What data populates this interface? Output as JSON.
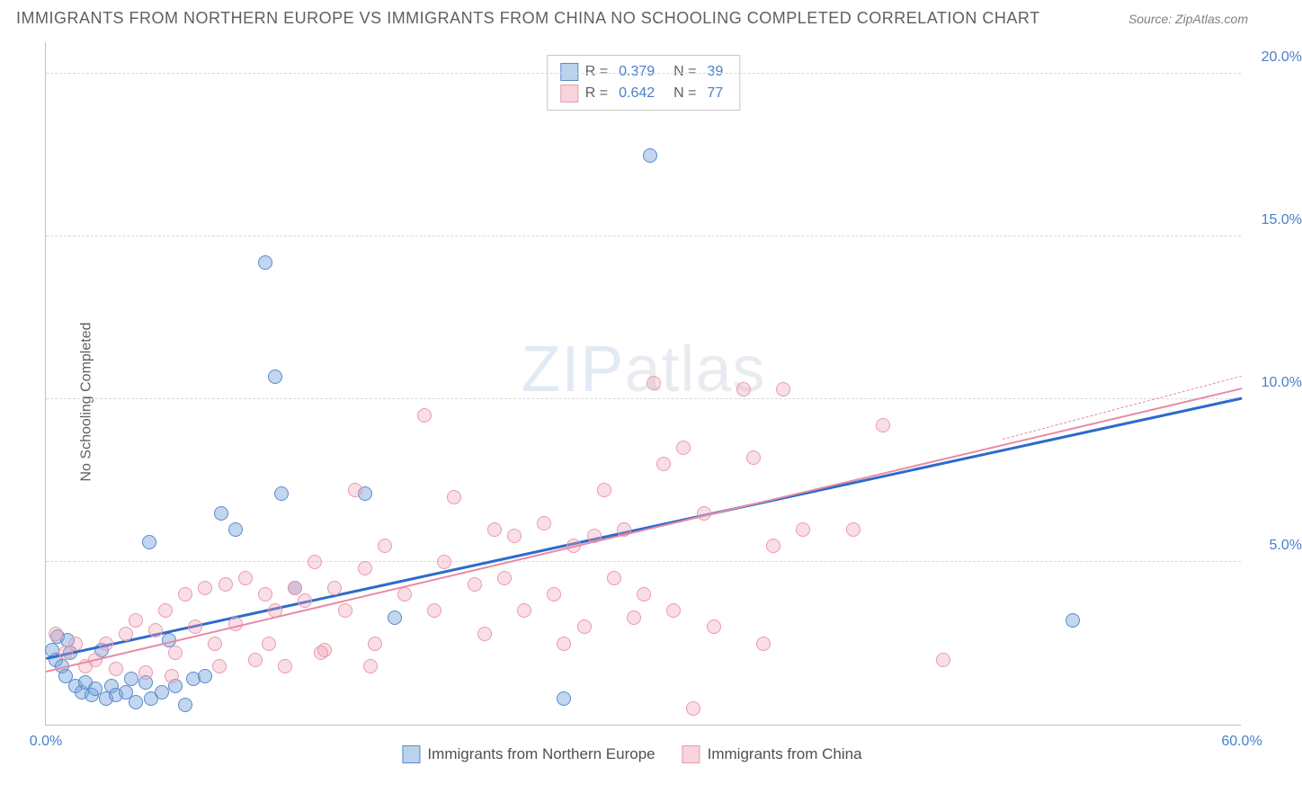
{
  "title": "IMMIGRANTS FROM NORTHERN EUROPE VS IMMIGRANTS FROM CHINA NO SCHOOLING COMPLETED CORRELATION CHART",
  "source": "Source: ZipAtlas.com",
  "ylabel": "No Schooling Completed",
  "watermark_bold": "ZIP",
  "watermark_thin": "atlas",
  "chart": {
    "type": "scatter",
    "xlim": [
      0,
      60
    ],
    "ylim": [
      0,
      21
    ],
    "ytick_values": [
      5.0,
      10.0,
      15.0,
      20.0
    ],
    "ytick_labels": [
      "5.0%",
      "10.0%",
      "15.0%",
      "20.0%"
    ],
    "xtick_values": [
      0,
      60
    ],
    "xtick_labels": [
      "0.0%",
      "60.0%"
    ],
    "background_color": "#ffffff",
    "grid_color": "#d8d8d8",
    "marker_size": 16,
    "series": [
      {
        "name": "Immigrants from Northern Europe",
        "color_fill": "rgba(120,165,220,0.45)",
        "color_border": "#5a8acb",
        "trend_color": "#2c6bcc",
        "trend": {
          "x1": 0,
          "y1": 2.0,
          "x2": 60,
          "y2": 10.0
        },
        "R": "0.379",
        "N": "39",
        "points": [
          [
            0.3,
            2.3
          ],
          [
            0.5,
            2.0
          ],
          [
            0.8,
            1.8
          ],
          [
            1.0,
            1.5
          ],
          [
            1.2,
            2.2
          ],
          [
            1.5,
            1.2
          ],
          [
            1.8,
            1.0
          ],
          [
            2.0,
            1.3
          ],
          [
            2.3,
            0.9
          ],
          [
            2.5,
            1.1
          ],
          [
            2.8,
            2.3
          ],
          [
            3.0,
            0.8
          ],
          [
            3.3,
            1.2
          ],
          [
            3.5,
            0.9
          ],
          [
            4.0,
            1.0
          ],
          [
            4.3,
            1.4
          ],
          [
            4.5,
            0.7
          ],
          [
            5.0,
            1.3
          ],
          [
            5.3,
            0.8
          ],
          [
            5.8,
            1.0
          ],
          [
            6.2,
            2.6
          ],
          [
            6.5,
            1.2
          ],
          [
            7.0,
            0.6
          ],
          [
            7.4,
            1.4
          ],
          [
            8.0,
            1.5
          ],
          [
            5.2,
            5.6
          ],
          [
            8.8,
            6.5
          ],
          [
            9.5,
            6.0
          ],
          [
            11.0,
            14.2
          ],
          [
            11.5,
            10.7
          ],
          [
            11.8,
            7.1
          ],
          [
            12.5,
            4.2
          ],
          [
            16.0,
            7.1
          ],
          [
            17.5,
            3.3
          ],
          [
            26.0,
            0.8
          ],
          [
            30.3,
            17.5
          ],
          [
            51.5,
            3.2
          ],
          [
            0.6,
            2.7
          ],
          [
            1.1,
            2.6
          ]
        ]
      },
      {
        "name": "Immigrants from China",
        "color_fill": "rgba(240,160,180,0.35)",
        "color_border": "#e89bae",
        "trend_color": "#e88ba3",
        "trend": {
          "x1": 0,
          "y1": 1.6,
          "x2": 60,
          "y2": 10.3
        },
        "R": "0.642",
        "N": "77",
        "points": [
          [
            0.5,
            2.8
          ],
          [
            1.0,
            2.2
          ],
          [
            1.5,
            2.5
          ],
          [
            2.0,
            1.8
          ],
          [
            2.5,
            2.0
          ],
          [
            3.0,
            2.5
          ],
          [
            3.5,
            1.7
          ],
          [
            4.0,
            2.8
          ],
          [
            4.5,
            3.2
          ],
          [
            5.0,
            1.6
          ],
          [
            5.5,
            2.9
          ],
          [
            6.0,
            3.5
          ],
          [
            6.5,
            2.2
          ],
          [
            7.0,
            4.0
          ],
          [
            7.5,
            3.0
          ],
          [
            8.0,
            4.2
          ],
          [
            8.5,
            2.5
          ],
          [
            9.0,
            4.3
          ],
          [
            9.5,
            3.1
          ],
          [
            10.0,
            4.5
          ],
          [
            10.5,
            2.0
          ],
          [
            11.0,
            4.0
          ],
          [
            11.5,
            3.5
          ],
          [
            12.0,
            1.8
          ],
          [
            12.5,
            4.2
          ],
          [
            13.0,
            3.8
          ],
          [
            13.5,
            5.0
          ],
          [
            14.0,
            2.3
          ],
          [
            14.5,
            4.2
          ],
          [
            15.0,
            3.5
          ],
          [
            15.5,
            7.2
          ],
          [
            16.0,
            4.8
          ],
          [
            16.5,
            2.5
          ],
          [
            17.0,
            5.5
          ],
          [
            18.0,
            4.0
          ],
          [
            19.0,
            9.5
          ],
          [
            19.5,
            3.5
          ],
          [
            20.0,
            5.0
          ],
          [
            20.5,
            7.0
          ],
          [
            21.5,
            4.3
          ],
          [
            22.0,
            2.8
          ],
          [
            22.5,
            6.0
          ],
          [
            23.0,
            4.5
          ],
          [
            23.5,
            5.8
          ],
          [
            24.0,
            3.5
          ],
          [
            25.0,
            6.2
          ],
          [
            25.5,
            4.0
          ],
          [
            26.0,
            2.5
          ],
          [
            26.5,
            5.5
          ],
          [
            27.0,
            3.0
          ],
          [
            27.5,
            5.8
          ],
          [
            28.0,
            7.2
          ],
          [
            28.5,
            4.5
          ],
          [
            29.0,
            6.0
          ],
          [
            29.5,
            3.3
          ],
          [
            30.0,
            4.0
          ],
          [
            30.5,
            10.5
          ],
          [
            31.0,
            8.0
          ],
          [
            31.5,
            3.5
          ],
          [
            32.0,
            8.5
          ],
          [
            32.5,
            0.5
          ],
          [
            33.0,
            6.5
          ],
          [
            33.5,
            3.0
          ],
          [
            35.0,
            10.3
          ],
          [
            35.5,
            8.2
          ],
          [
            36.0,
            2.5
          ],
          [
            36.5,
            5.5
          ],
          [
            37.0,
            10.3
          ],
          [
            38.0,
            6.0
          ],
          [
            40.5,
            6.0
          ],
          [
            42.0,
            9.2
          ],
          [
            45.0,
            2.0
          ],
          [
            6.3,
            1.5
          ],
          [
            8.7,
            1.8
          ],
          [
            11.2,
            2.5
          ],
          [
            13.8,
            2.2
          ],
          [
            16.3,
            1.8
          ]
        ]
      }
    ],
    "legend_bottom": [
      {
        "swatch": "blue",
        "label": "Immigrants from Northern Europe"
      },
      {
        "swatch": "pink",
        "label": "Immigrants from China"
      }
    ]
  }
}
